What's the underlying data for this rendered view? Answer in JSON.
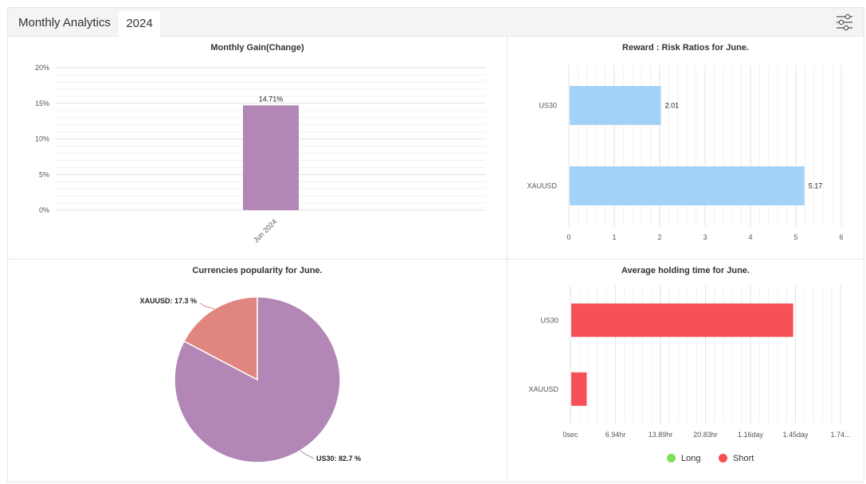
{
  "header": {
    "title": "Monthly Analytics",
    "year_tab": "2024",
    "settings_icon": "sliders-icon"
  },
  "chart_data": [
    {
      "type": "bar",
      "title": "Monthly Gain(Change)",
      "categories": [
        "Jun 2024"
      ],
      "values": [
        14.71
      ],
      "value_labels": [
        "14.71%"
      ],
      "yticks": [
        "0%",
        "5%",
        "10%",
        "15%",
        "20%"
      ],
      "ylim": [
        0,
        20
      ],
      "color": "#b287b6",
      "grid": true
    },
    {
      "type": "bar",
      "orientation": "horizontal",
      "title": "Reward : Risk Ratios for June.",
      "categories": [
        "US30",
        "XAUUSD"
      ],
      "values": [
        2.01,
        5.17
      ],
      "value_labels": [
        "2.01",
        "5.17"
      ],
      "xticks": [
        "0",
        "1",
        "2",
        "3",
        "4",
        "5",
        "6"
      ],
      "xlim": [
        0,
        6
      ],
      "color": "#a3d2f7",
      "grid": true
    },
    {
      "type": "pie",
      "title": "Currencies popularity for June.",
      "slices": [
        {
          "label": "XAUUSD: 17.3 %",
          "value": 17.3,
          "color": "#e0857f"
        },
        {
          "label": "US30: 82.7 %",
          "value": 82.7,
          "color": "#b287b6"
        }
      ]
    },
    {
      "type": "bar",
      "orientation": "horizontal",
      "title": "Average holding time for June.",
      "categories": [
        "US30",
        "XAUUSD"
      ],
      "xticks": [
        "0sec",
        "6.94hr",
        "13.89hr",
        "20.83hr",
        "1.16day",
        "1.45day",
        "1.74..."
      ],
      "xlim": [
        0,
        1.74
      ],
      "x_unit": "day",
      "series": [
        {
          "name": "Long",
          "values": [
            0,
            0
          ],
          "color": "#7ee05a"
        },
        {
          "name": "Short",
          "values": [
            1.43,
            0.1
          ],
          "color": "#f75056"
        }
      ],
      "legend": "bottom-center",
      "grid": true
    }
  ]
}
